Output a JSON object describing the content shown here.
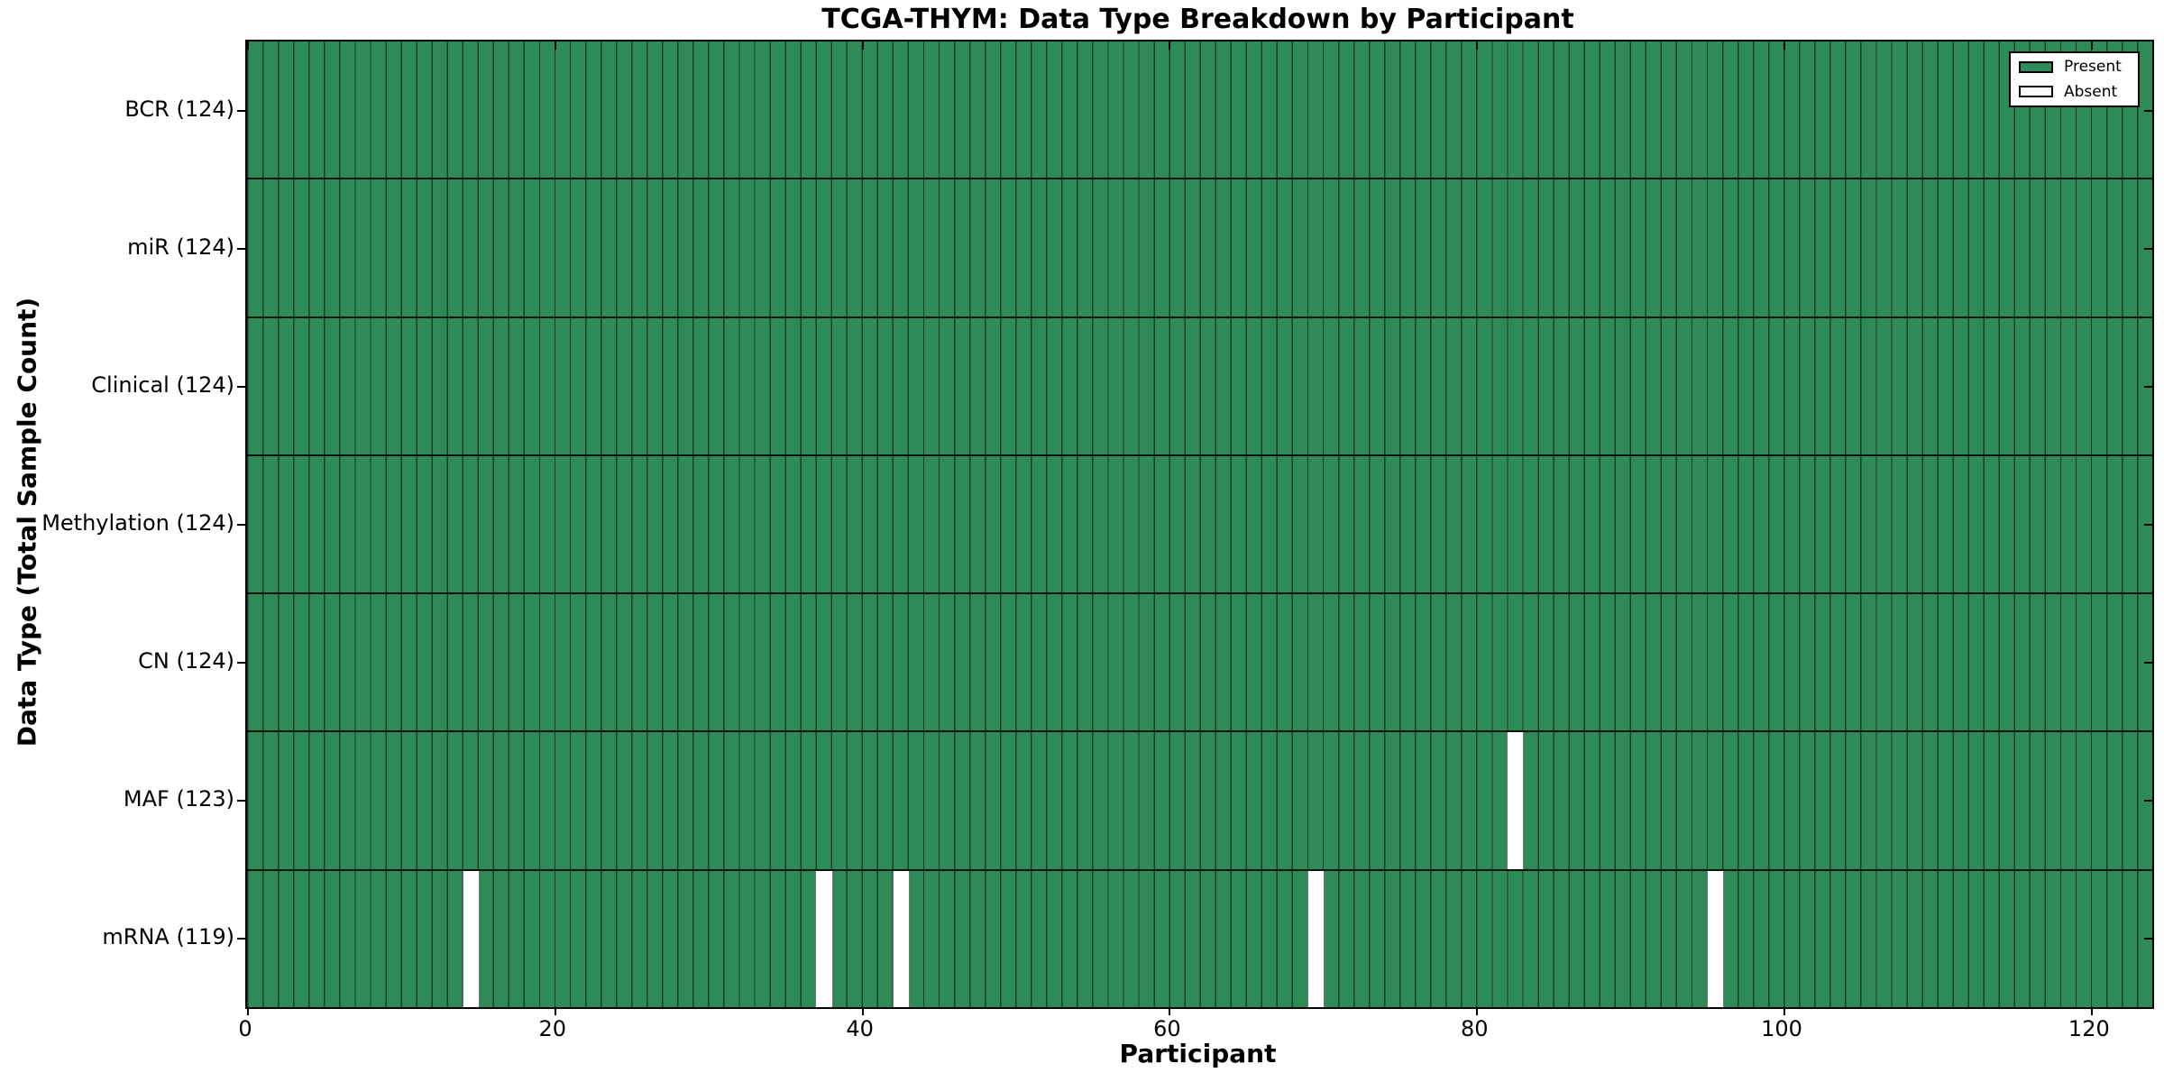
{
  "title": "TCGA-THYM: Data Type Breakdown by Participant",
  "xlabel": "Participant",
  "ylabel": "Data Type (Total Sample Count)",
  "legend": {
    "present_label": "Present",
    "absent_label": "Absent"
  },
  "colors": {
    "present": "#2e8b57",
    "absent": "#ffffff",
    "edge": "#000000"
  },
  "chart_data": {
    "type": "heatmap",
    "title": "TCGA-THYM: Data Type Breakdown by Participant",
    "xlabel": "Participant",
    "ylabel": "Data Type (Total Sample Count)",
    "n_participants": 124,
    "x_range": [
      0,
      124
    ],
    "x_ticks": [
      0,
      20,
      40,
      60,
      80,
      100,
      120
    ],
    "legend_entries": [
      "Present",
      "Absent"
    ],
    "legend_position": "upper right",
    "rows": [
      {
        "name": "BCR",
        "label": "BCR (124)",
        "total": 124,
        "absent_indices": []
      },
      {
        "name": "miR",
        "label": "miR (124)",
        "total": 124,
        "absent_indices": []
      },
      {
        "name": "Clinical",
        "label": "Clinical (124)",
        "total": 124,
        "absent_indices": []
      },
      {
        "name": "Methylation",
        "label": "Methylation (124)",
        "total": 124,
        "absent_indices": []
      },
      {
        "name": "CN",
        "label": "CN (124)",
        "total": 124,
        "absent_indices": []
      },
      {
        "name": "MAF",
        "label": "MAF (123)",
        "total": 123,
        "absent_indices": [
          82
        ]
      },
      {
        "name": "mRNA",
        "label": "mRNA (119)",
        "total": 119,
        "absent_indices": [
          14,
          37,
          42,
          69,
          95
        ]
      }
    ]
  }
}
